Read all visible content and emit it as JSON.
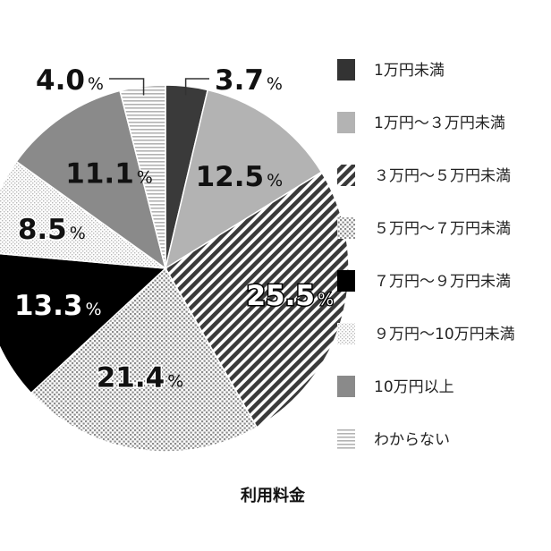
{
  "chart_data": {
    "type": "pie",
    "title": "",
    "caption": "利用料金",
    "unit": "%",
    "slices": [
      {
        "label": "1万円未満",
        "value": 3.7,
        "color": "#3a3a3a",
        "pattern": "solid-dark"
      },
      {
        "label": "1万円～３万円未満",
        "value": 12.5,
        "color": "#b0b0b0",
        "pattern": "solid-light"
      },
      {
        "label": "３万円～５万円未満",
        "value": 25.5,
        "color": "#3a3a3a",
        "pattern": "diagonal-stripes"
      },
      {
        "label": "５万円～７万円未満",
        "value": 21.4,
        "color": "#9a9a9a",
        "pattern": "dots"
      },
      {
        "label": "７万円～９万円未満",
        "value": 13.3,
        "color": "#000000",
        "pattern": "solid-black"
      },
      {
        "label": "９万円～10万円未満",
        "value": 8.5,
        "color": "#c0c0c0",
        "pattern": "fine-dots"
      },
      {
        "label": "10万円以上",
        "value": 11.1,
        "color": "#8a8a8a",
        "pattern": "solid-mid"
      },
      {
        "label": "わからない",
        "value": 4.0,
        "color": "#bdbdbd",
        "pattern": "horizontal-lines"
      }
    ],
    "legend_position": "right"
  }
}
